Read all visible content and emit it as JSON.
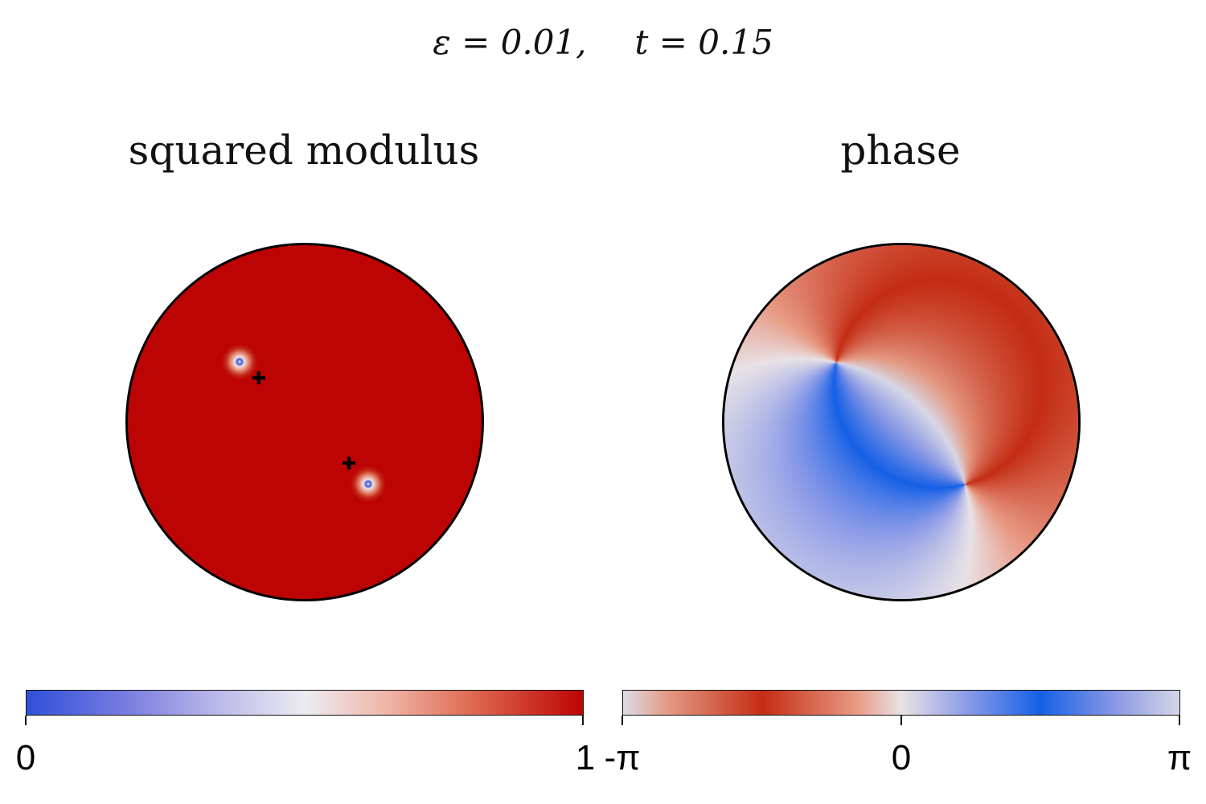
{
  "figure": {
    "title_eps": "ε = 0.01,",
    "title_t": "t = 0.15"
  },
  "panels": {
    "modulus": {
      "title": "squared modulus"
    },
    "phase": {
      "title": "phase"
    }
  },
  "colorbars": {
    "modulus": {
      "ticks": [
        "0",
        "1"
      ],
      "range": [
        0,
        1
      ],
      "colors": [
        "#3050d8",
        "#ececf2",
        "#bd0404"
      ]
    },
    "phase": {
      "ticks": [
        "-π",
        "0",
        "π"
      ],
      "colors": [
        "#dcdce6",
        "#c42c14",
        "#e8e2e6",
        "#1560e6",
        "#d6d6e6"
      ]
    }
  },
  "chart_data": {
    "type": "heatmap",
    "vortices": [
      {
        "x": -0.37,
        "y": 0.34
      },
      {
        "x": 0.36,
        "y": -0.35
      }
    ],
    "markers": [
      {
        "x": -0.26,
        "y": 0.24
      },
      {
        "x": 0.25,
        "y": -0.24
      }
    ]
  }
}
